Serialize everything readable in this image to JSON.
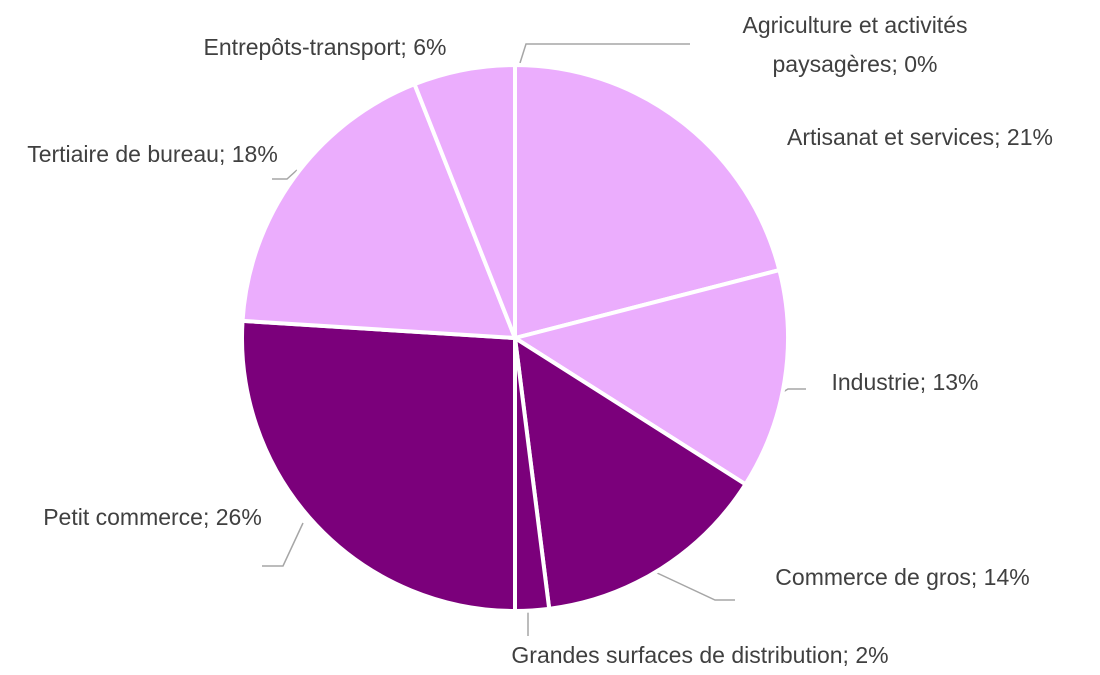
{
  "chart_data": {
    "type": "pie",
    "categories": [
      "Agriculture et activités paysagères",
      "Artisanat et services",
      "Industrie",
      "Commerce de gros",
      "Grandes surfaces de distribution",
      "Petit commerce",
      "Tertiaire de bureau",
      "Entrepôts-transport"
    ],
    "values": [
      0,
      21,
      13,
      14,
      2,
      26,
      18,
      6
    ],
    "value_labels": [
      "0%",
      "21%",
      "13%",
      "14%",
      "2%",
      "26%",
      "18%",
      "6%"
    ],
    "separator": "; ",
    "colors": [
      "#ebadfd",
      "#ebadfd",
      "#ebadfd",
      "#7b007b",
      "#7b007b",
      "#7b007b",
      "#ebadfd",
      "#ebadfd"
    ]
  }
}
